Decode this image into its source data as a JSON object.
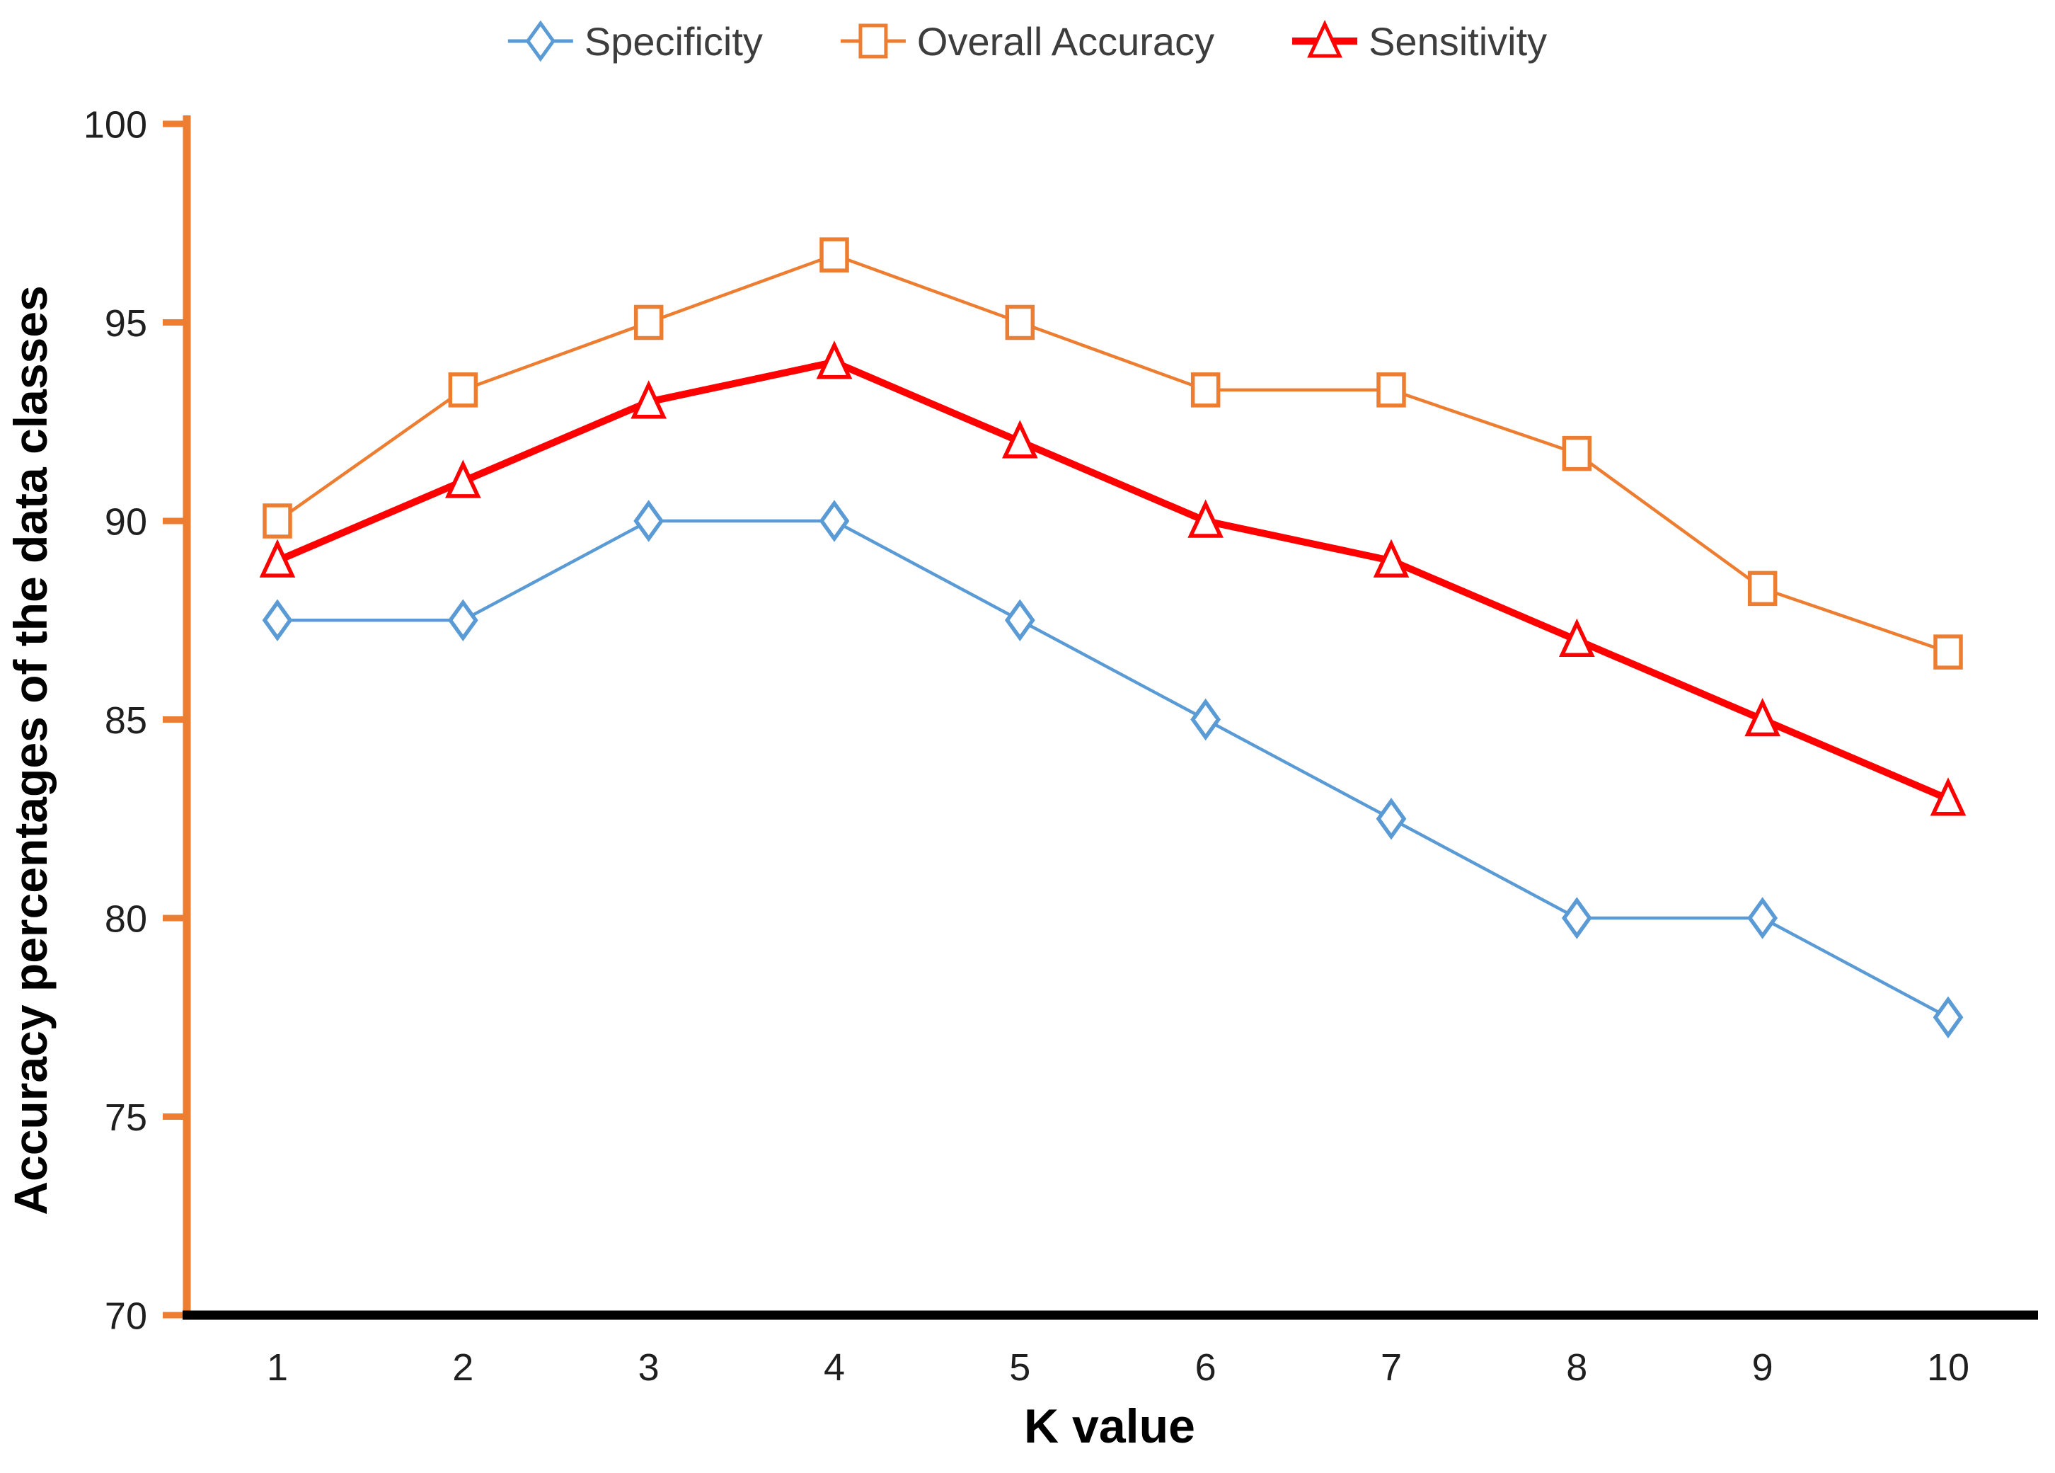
{
  "chart_data": {
    "type": "line",
    "x": [
      1,
      2,
      3,
      4,
      5,
      6,
      7,
      8,
      9,
      10
    ],
    "xlabel": "K value",
    "ylabel": "Accuracy percentages of the data classes",
    "ylim": [
      70,
      100
    ],
    "yticks": [
      70,
      75,
      80,
      85,
      90,
      95,
      100
    ],
    "grid": false,
    "legend_position": "top-center",
    "axis_colors": {
      "y_axis": "#ED7D31",
      "x_axis": "#000000"
    },
    "series": [
      {
        "name": "Specificity",
        "color": "#5B9BD5",
        "marker": "diamond",
        "line_width": 4.5,
        "values": [
          87.5,
          87.5,
          90,
          90,
          87.5,
          85,
          82.5,
          80,
          80,
          77.5
        ]
      },
      {
        "name": "Overall Accuracy",
        "color": "#ED7D31",
        "marker": "square",
        "line_width": 4.5,
        "values": [
          90,
          93.3,
          95,
          96.7,
          95,
          93.3,
          93.3,
          91.7,
          88.3,
          86.7
        ]
      },
      {
        "name": "Sensitivity",
        "color": "#FF0000",
        "marker": "triangle",
        "line_width": 10,
        "values": [
          89,
          91,
          93,
          94,
          92,
          90,
          89,
          87,
          85,
          83
        ]
      }
    ]
  }
}
